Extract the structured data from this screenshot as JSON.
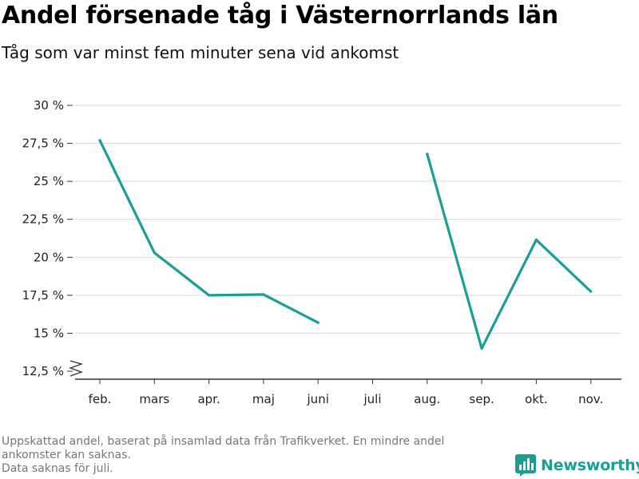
{
  "title": "Andel försenade tåg i Västernorrlands län",
  "subtitle": "Tåg som var minst fem minuter sena vid ankomst",
  "footnote": {
    "line1": "Uppskattad andel, baserat på insamlad data från Trafikverket. En mindre andel",
    "line2": "ankomster kan saknas.",
    "line3": "Data saknas för juli."
  },
  "logo": {
    "text": "Newsworthy",
    "icon": "newsworthy-logo-icon",
    "color": "#1a9e96"
  },
  "chart_data": {
    "type": "line",
    "title": "Andel försenade tåg i Västernorrlands län",
    "subtitle": "Tåg som var minst fem minuter sena vid ankomst",
    "categories": [
      "feb.",
      "mars",
      "apr.",
      "maj",
      "juni",
      "juli",
      "aug.",
      "sep.",
      "okt.",
      "nov."
    ],
    "series": [
      {
        "color": "#1a9e96",
        "values": [
          27.7,
          20.3,
          17.5,
          17.55,
          15.7,
          null,
          26.8,
          14.0,
          21.15,
          17.75
        ]
      }
    ],
    "yticks": [
      12.5,
      15,
      17.5,
      20,
      22.5,
      25,
      27.5,
      30
    ],
    "ytick_labels": [
      "12,5 %",
      "15 %",
      "17,5 %",
      "20 %",
      "22,5 %",
      "25 %",
      "27,5 %",
      "30 %"
    ],
    "ylim": [
      12.5,
      30
    ],
    "y_axis_break": true,
    "grid": true,
    "xlabel": "",
    "ylabel": ""
  }
}
